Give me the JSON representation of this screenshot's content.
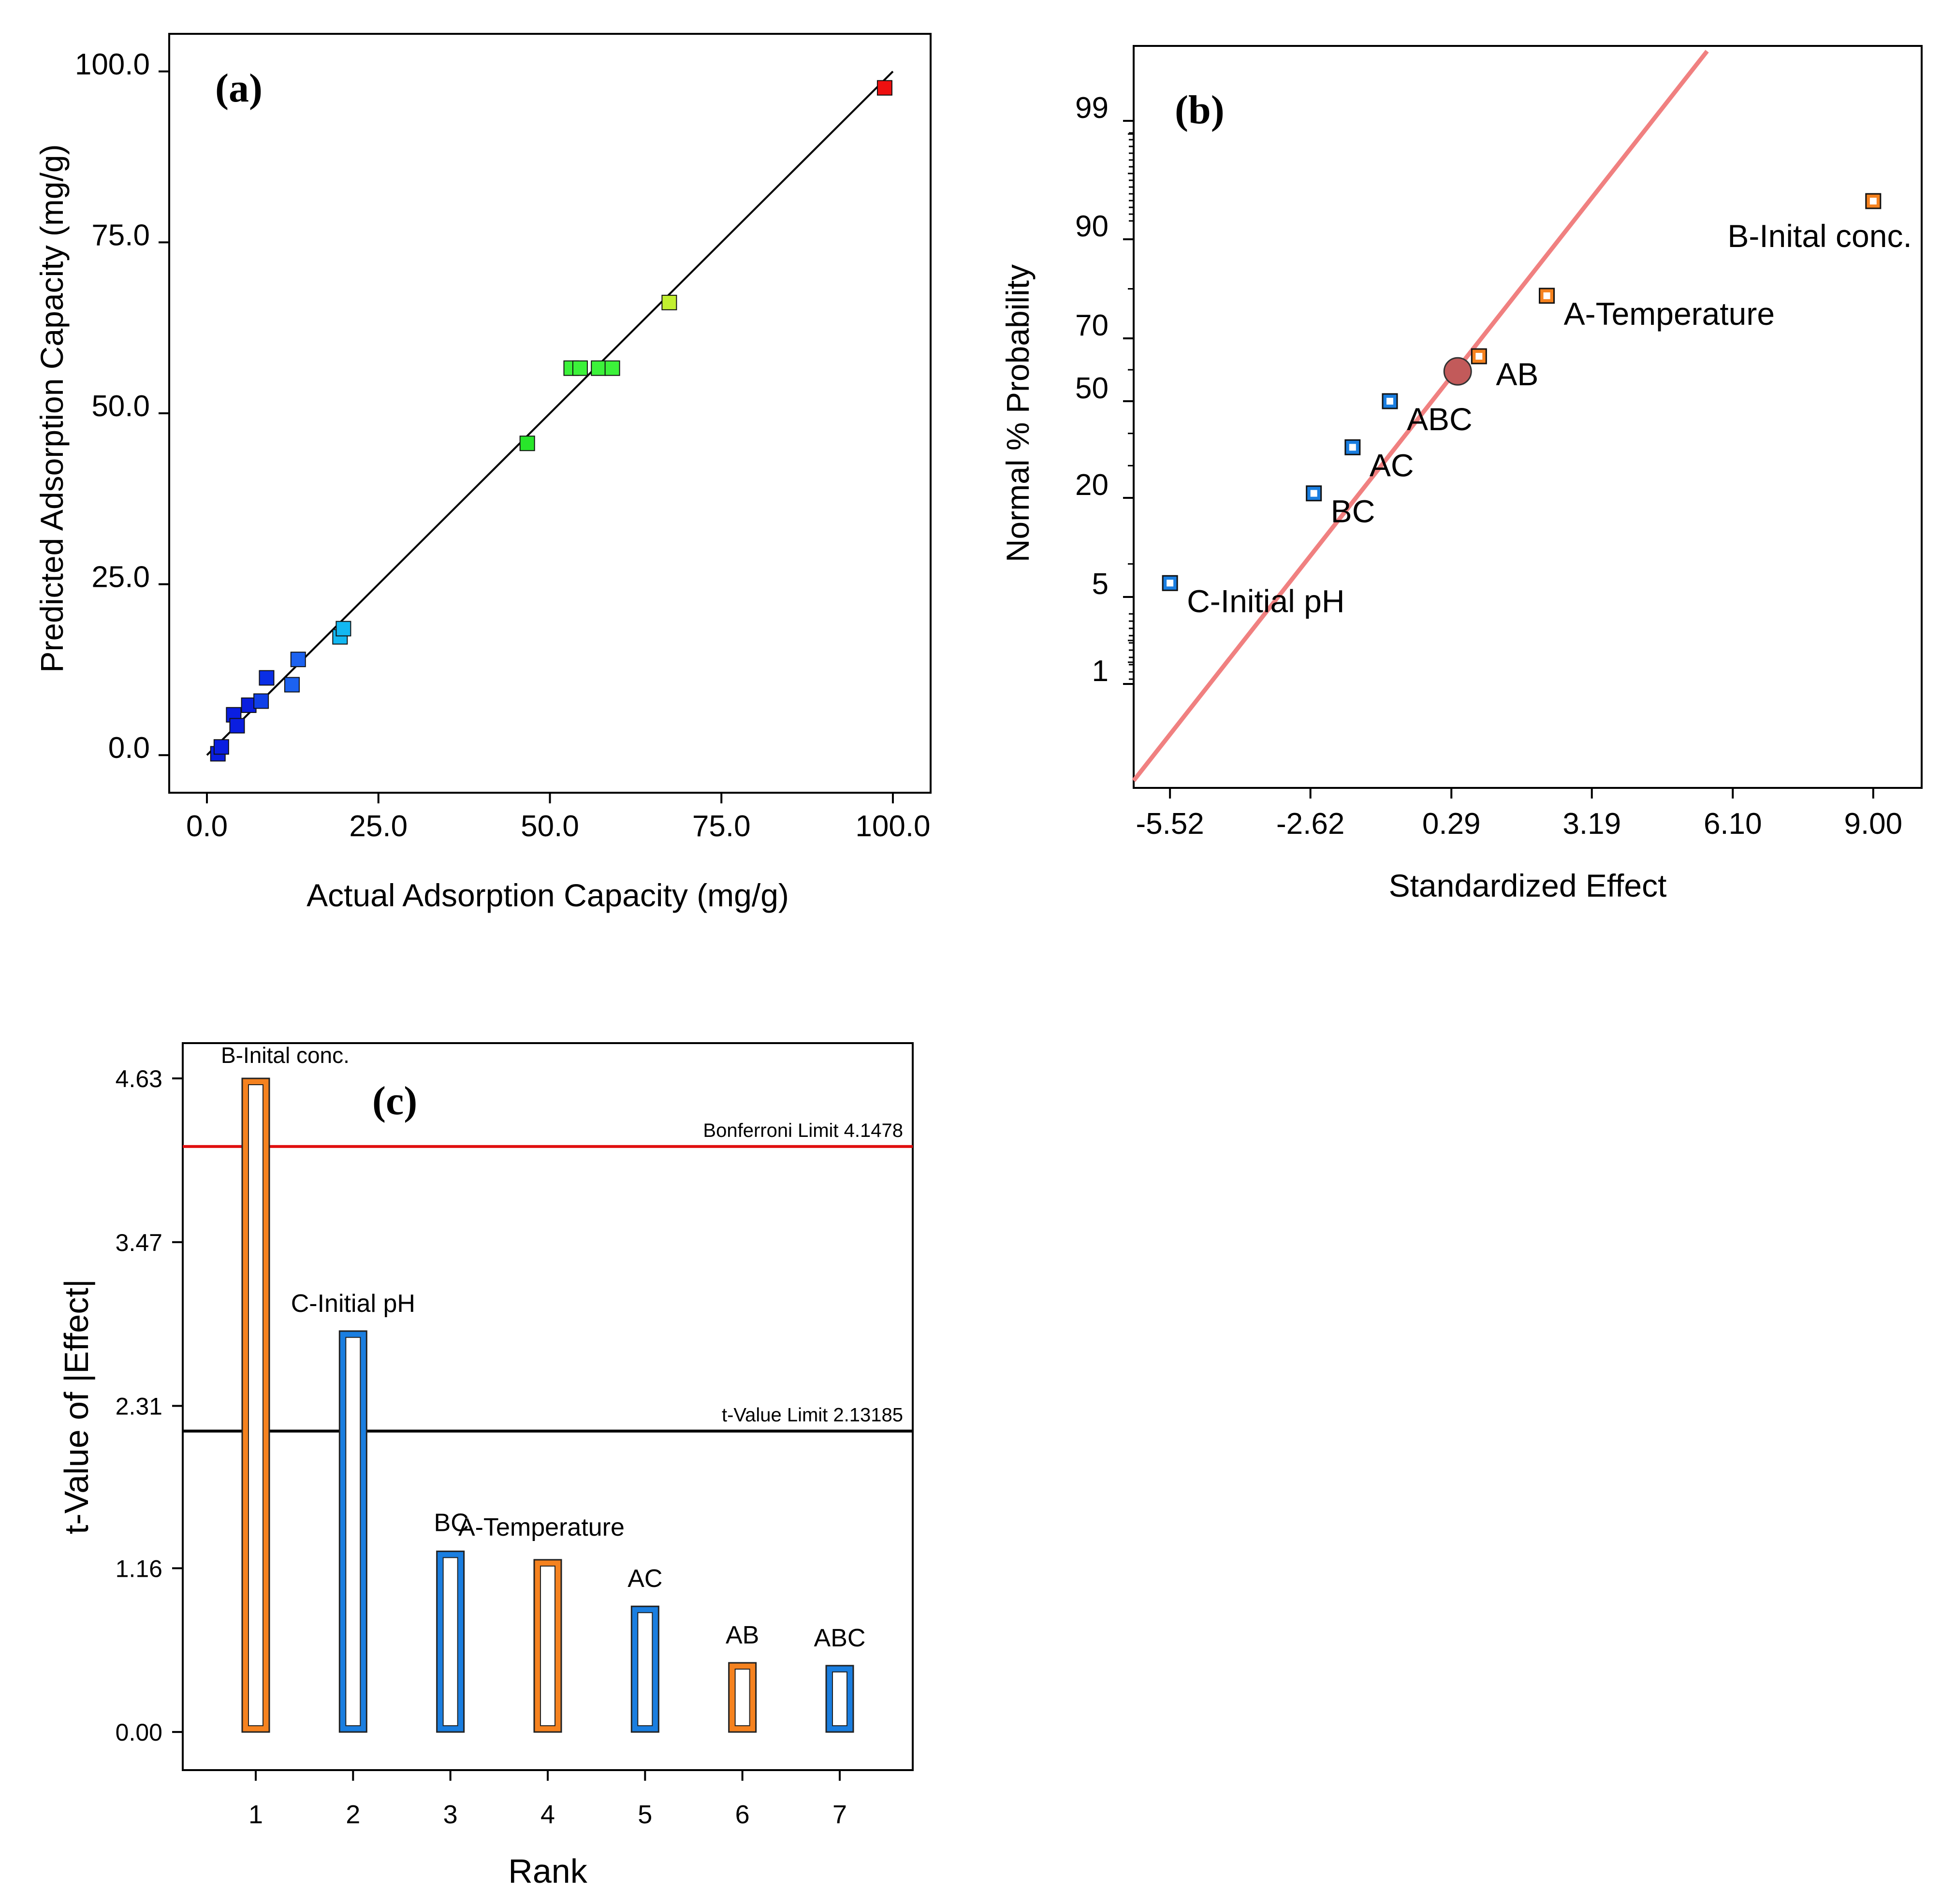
{
  "chart_data": [
    {
      "type": "scatter",
      "panel": "(a)",
      "xlabel": "Actual Adsorption Capacity (mg/g)",
      "ylabel": "Predicted Adsorption Capacity (mg/g)",
      "xlim": [
        -5.5,
        105.5
      ],
      "ylim": [
        -5.5,
        105.5
      ],
      "x_ticks": [
        0,
        25,
        50,
        75,
        100
      ],
      "x_tick_labels": [
        "0.0",
        "25.0",
        "50.0",
        "75.0",
        "100.0"
      ],
      "y_ticks": [
        0,
        25,
        50,
        75,
        100
      ],
      "y_tick_labels": [
        "0.0",
        "25.0",
        "50.0",
        "75.0",
        "100.0"
      ],
      "reference_line": [
        [
          0,
          0
        ],
        [
          100,
          100
        ]
      ],
      "points": [
        {
          "x": 1.6,
          "y": 0.2,
          "color": "#0a1ee0"
        },
        {
          "x": 2.1,
          "y": 1.2,
          "color": "#0a1ee0"
        },
        {
          "x": 3.9,
          "y": 5.9,
          "color": "#0a1ee0"
        },
        {
          "x": 4.4,
          "y": 4.3,
          "color": "#0a1ee0"
        },
        {
          "x": 6.1,
          "y": 7.3,
          "color": "#0a1ee0"
        },
        {
          "x": 7.9,
          "y": 7.9,
          "color": "#1040e8"
        },
        {
          "x": 8.7,
          "y": 11.3,
          "color": "#0a2ee6"
        },
        {
          "x": 12.4,
          "y": 10.3,
          "color": "#1c62f0"
        },
        {
          "x": 13.3,
          "y": 14.0,
          "color": "#1c62f0"
        },
        {
          "x": 19.4,
          "y": 17.3,
          "color": "#12b8f2"
        },
        {
          "x": 19.9,
          "y": 18.5,
          "color": "#12b8f2"
        },
        {
          "x": 46.7,
          "y": 45.6,
          "color": "#28e62a"
        },
        {
          "x": 53.1,
          "y": 56.6,
          "color": "#3cf23a"
        },
        {
          "x": 54.4,
          "y": 56.6,
          "color": "#3cf23a"
        },
        {
          "x": 57.1,
          "y": 56.6,
          "color": "#3cf23a"
        },
        {
          "x": 59.1,
          "y": 56.6,
          "color": "#3cf23a"
        },
        {
          "x": 67.4,
          "y": 66.2,
          "color": "#c2f030"
        },
        {
          "x": 98.8,
          "y": 97.6,
          "color": "#ee1010"
        }
      ]
    },
    {
      "type": "scatter",
      "panel": "(b)",
      "xlabel": "Standardized Effect",
      "ylabel": "Normal % Probability",
      "x_ticks": [
        -5.52,
        -2.62,
        0.29,
        3.19,
        6.1,
        9.0
      ],
      "x_tick_labels": [
        "-5.52",
        "-2.62",
        "0.29",
        "3.19",
        "6.10",
        "9.00"
      ],
      "y_ticks": [
        1,
        5,
        20,
        50,
        70,
        90,
        99
      ],
      "y_tick_labels": [
        "1",
        "5",
        "20",
        "50",
        "70",
        "90",
        "99"
      ],
      "fit_line": [
        [
          -6.27,
          0.07
        ],
        [
          5.57,
          99.93
        ]
      ],
      "points": [
        {
          "label": "C-Initial pH",
          "x": -5.52,
          "y": 7.1,
          "type": "negative",
          "color": "#1a7ee0"
        },
        {
          "label": "BC",
          "x": -2.55,
          "y": 21.4,
          "type": "negative",
          "color": "#1a7ee0"
        },
        {
          "label": "AC",
          "x": -1.75,
          "y": 35.7,
          "type": "negative",
          "color": "#1a7ee0"
        },
        {
          "label": "ABC",
          "x": -0.98,
          "y": 50.0,
          "type": "negative",
          "color": "#1a7ee0"
        },
        {
          "label": "",
          "x": 0.42,
          "y": 59.5,
          "type": "error",
          "color": "#c25a5a"
        },
        {
          "label": "AB",
          "x": 0.86,
          "y": 64.3,
          "type": "positive",
          "color": "#f5821f"
        },
        {
          "label": "A-Temperature",
          "x": 2.26,
          "y": 78.6,
          "type": "positive",
          "color": "#f5821f"
        },
        {
          "label": "B-Inital conc.",
          "x": 9.0,
          "y": 92.9,
          "type": "positive",
          "color": "#f5821f"
        }
      ]
    },
    {
      "type": "bar",
      "panel": "(c)",
      "xlabel": "Rank",
      "ylabel": "t-Value of |Effect|",
      "ylim": [
        -0.27,
        4.88
      ],
      "categories": [
        "1",
        "2",
        "3",
        "4",
        "5",
        "6",
        "7"
      ],
      "y_ticks": [
        0,
        1.16,
        2.31,
        3.47,
        4.63
      ],
      "y_tick_labels": [
        "0.00",
        "1.16",
        "2.31",
        "3.47",
        "4.63"
      ],
      "bars": [
        {
          "rank": "1",
          "label": "B-Inital conc.",
          "value": 4.63,
          "type": "positive",
          "color": "#f5821f"
        },
        {
          "rank": "2",
          "label": "C-Initial pH",
          "value": 2.84,
          "type": "negative",
          "color": "#1a7ee0"
        },
        {
          "rank": "3",
          "label": "BC",
          "value": 1.28,
          "type": "negative",
          "color": "#1a7ee0"
        },
        {
          "rank": "4",
          "label": "A-Temperature",
          "value": 1.22,
          "type": "positive",
          "color": "#f5821f"
        },
        {
          "rank": "5",
          "label": "AC",
          "value": 0.89,
          "type": "negative",
          "color": "#1a7ee0"
        },
        {
          "rank": "6",
          "label": "AB",
          "value": 0.49,
          "type": "positive",
          "color": "#f5821f"
        },
        {
          "rank": "7",
          "label": "ABC",
          "value": 0.47,
          "type": "negative",
          "color": "#1a7ee0"
        }
      ],
      "limits": [
        {
          "label": "Bonferroni Limit 4.1478",
          "value": 4.1478,
          "color": "#e01010"
        },
        {
          "label": "t-Value Limit 2.13185",
          "value": 2.13185,
          "color": "#000000"
        }
      ]
    }
  ]
}
